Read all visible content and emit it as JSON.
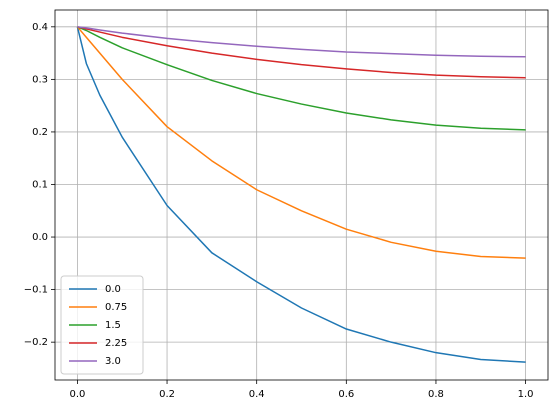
{
  "chart_data": {
    "type": "line",
    "x": [
      0.0,
      0.02,
      0.05,
      0.1,
      0.2,
      0.3,
      0.4,
      0.5,
      0.6,
      0.7,
      0.8,
      0.9,
      1.0
    ],
    "series": [
      {
        "name": "0.0",
        "color": "#1f77b4",
        "values": [
          0.4,
          0.33,
          0.27,
          0.19,
          0.06,
          -0.03,
          -0.085,
          -0.135,
          -0.175,
          -0.2,
          -0.22,
          -0.233,
          -0.238
        ]
      },
      {
        "name": "0.75",
        "color": "#ff7f0e",
        "values": [
          0.4,
          0.38,
          0.35,
          0.3,
          0.21,
          0.145,
          0.09,
          0.05,
          0.015,
          -0.01,
          -0.027,
          -0.037,
          -0.04
        ]
      },
      {
        "name": "1.5",
        "color": "#2ca02c",
        "values": [
          0.4,
          0.393,
          0.38,
          0.36,
          0.328,
          0.298,
          0.273,
          0.253,
          0.236,
          0.223,
          0.213,
          0.207,
          0.204
        ]
      },
      {
        "name": "2.25",
        "color": "#d62728",
        "values": [
          0.4,
          0.396,
          0.39,
          0.38,
          0.364,
          0.35,
          0.338,
          0.328,
          0.32,
          0.313,
          0.308,
          0.305,
          0.303
        ]
      },
      {
        "name": "3.0",
        "color": "#9467bd",
        "values": [
          0.4,
          0.398,
          0.394,
          0.388,
          0.378,
          0.37,
          0.363,
          0.357,
          0.352,
          0.349,
          0.346,
          0.344,
          0.343
        ]
      }
    ],
    "xlim": [
      -0.05,
      1.05
    ],
    "ylim": [
      -0.272,
      0.432
    ],
    "xticks": [
      {
        "value": 0.0,
        "label": "0.0"
      },
      0.2,
      0.4,
      0.6,
      0.8,
      {
        "value": 1.0,
        "label": "1.0"
      }
    ],
    "yticks": [
      {
        "value": -0.2,
        "label": "−0.2"
      },
      {
        "value": -0.1,
        "label": "−0.1"
      },
      {
        "value": 0.0,
        "label": "0.0"
      },
      0.1,
      0.2,
      0.3,
      0.4
    ],
    "grid": true,
    "legend": "lower left"
  }
}
